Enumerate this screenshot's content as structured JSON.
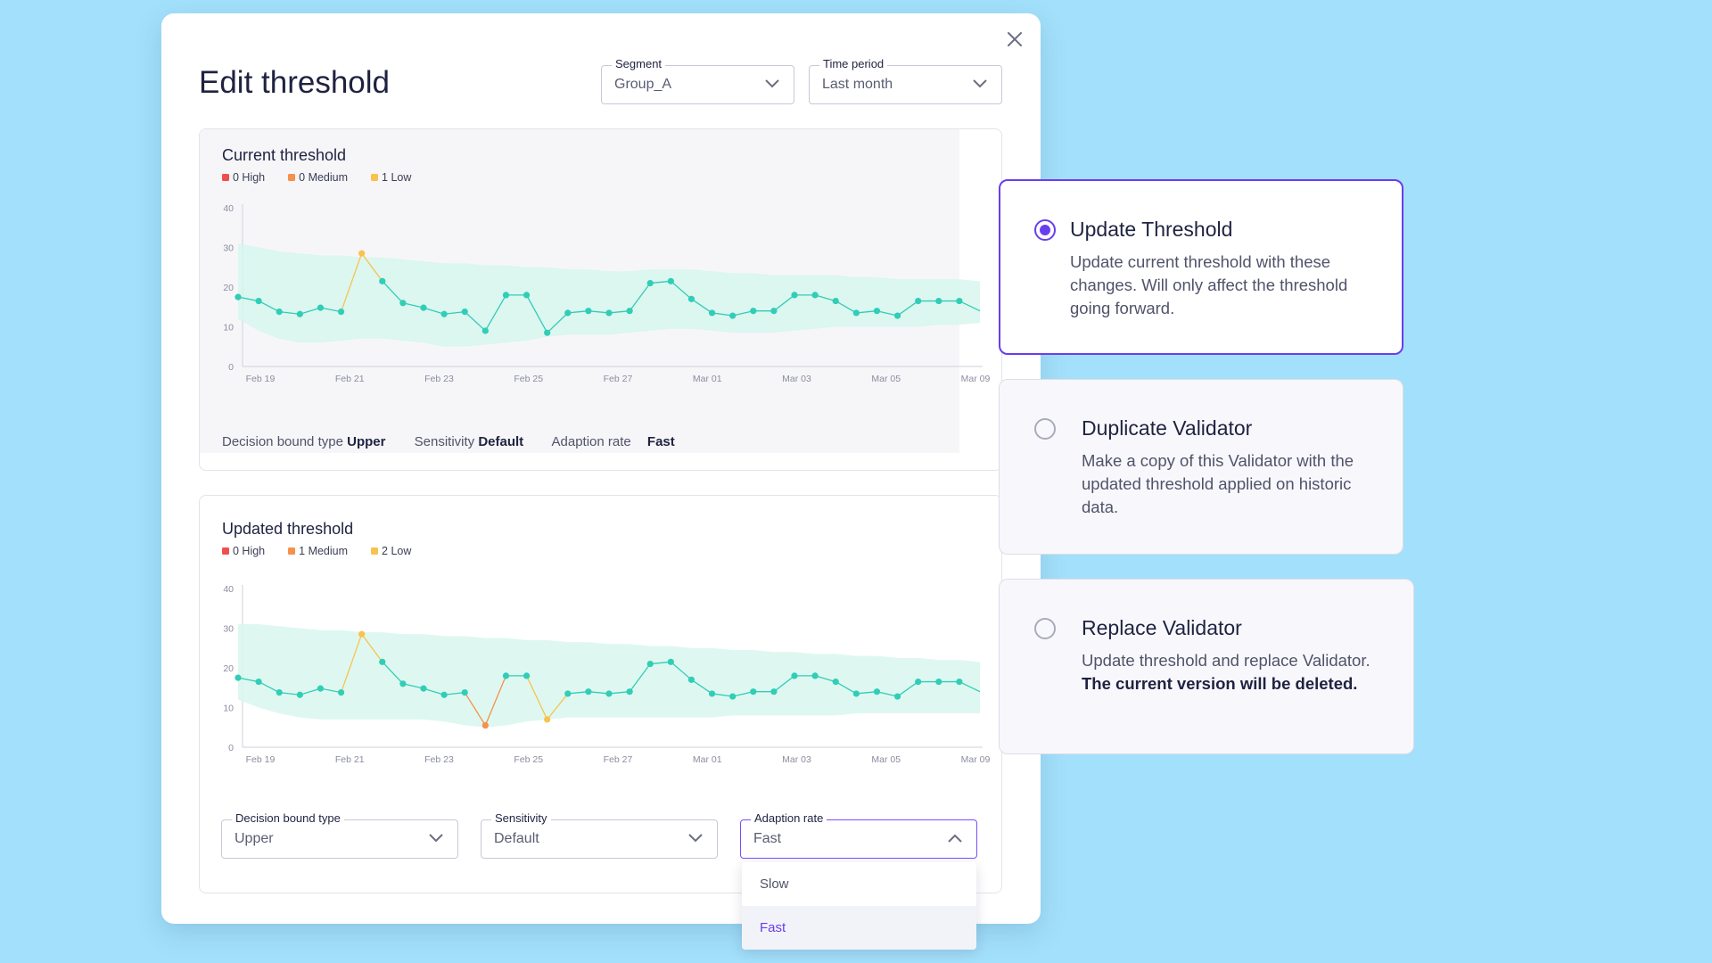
{
  "modal": {
    "title": "Edit threshold",
    "segment": {
      "label": "Segment",
      "value": "Group_A"
    },
    "time_period": {
      "label": "Time period",
      "value": "Last month"
    }
  },
  "current": {
    "title": "Current threshold",
    "legend": [
      {
        "label": "0 High",
        "color": "#ef4f4f"
      },
      {
        "label": "0 Medium",
        "color": "#f5914a"
      },
      {
        "label": "1 Low",
        "color": "#f7c34c"
      }
    ],
    "meta": {
      "bound_label": "Decision bound type",
      "bound_value": "Upper",
      "sensitivity_label": "Sensitivity",
      "sensitivity_value": "Default",
      "adaption_label": "Adaption rate",
      "adaption_value": "Fast"
    }
  },
  "updated": {
    "title": "Updated threshold",
    "legend": [
      {
        "label": "0 High",
        "color": "#ef4f4f"
      },
      {
        "label": "1 Medium",
        "color": "#f5914a"
      },
      {
        "label": "2 Low",
        "color": "#f7c34c"
      }
    ],
    "controls": {
      "bound": {
        "label": "Decision bound type",
        "value": "Upper"
      },
      "sensitivity": {
        "label": "Sensitivity",
        "value": "Default"
      },
      "adaption": {
        "label": "Adaption rate",
        "value": "Fast"
      }
    },
    "dropdown_options": [
      "Slow",
      "Fast"
    ]
  },
  "options": [
    {
      "title": "Update Threshold",
      "desc": "Update current threshold with these changes. Will only affect the threshold going forward.",
      "desc_bold": "",
      "selected": true
    },
    {
      "title": "Duplicate Validator",
      "desc": "Make a copy of this Validator with the updated threshold applied on historic data.",
      "desc_bold": "",
      "selected": false
    },
    {
      "title": "Replace Validator",
      "desc": "Update threshold and replace Validator. ",
      "desc_bold": "The current version will be deleted.",
      "selected": false
    }
  ],
  "chart_data": [
    {
      "type": "line",
      "title": "Current threshold",
      "xlabel": "",
      "ylabel": "",
      "ylim": [
        0,
        40
      ],
      "yticks": [
        0,
        10,
        20,
        30,
        40
      ],
      "xticks": [
        "Feb 19",
        "Feb 21",
        "Feb 23",
        "Feb 25",
        "Feb 27",
        "Mar 01",
        "Mar 03",
        "Mar 05",
        "Mar 09"
      ],
      "series": [
        {
          "values": [
            17.5,
            16.5,
            13.8,
            13.2,
            14.8,
            13.8,
            28.5,
            21.5,
            16.0,
            14.8,
            13.2,
            13.8,
            9.0,
            18.0,
            18.0,
            8.5,
            13.5,
            14.0,
            13.5,
            14.0,
            21.0,
            21.5,
            17.0,
            13.5,
            12.8,
            14.0,
            14.0,
            18.0,
            18.0,
            16.5,
            13.5,
            14.0,
            12.8,
            16.5,
            16.5,
            16.5,
            14.0
          ]
        }
      ],
      "anomalies": [
        {
          "index": 6,
          "level": "low"
        }
      ],
      "band_upper": [
        31,
        30,
        29,
        28.5,
        28,
        28,
        27.5,
        27.5,
        27,
        26.5,
        26,
        26,
        25.5,
        25.5,
        25,
        25,
        24.5,
        24.5,
        24,
        24,
        24.5,
        24.5,
        24.5,
        24,
        23.5,
        23.5,
        23,
        23,
        23,
        23,
        22.5,
        22.5,
        22,
        22,
        22,
        22,
        21.5
      ],
      "band_lower": [
        12,
        9,
        7,
        6,
        6,
        6.5,
        7,
        7,
        6.5,
        6,
        5,
        5,
        5.5,
        6,
        6.5,
        7.5,
        8,
        8,
        8,
        8.5,
        9,
        9.5,
        9.5,
        9,
        8.5,
        8.5,
        8.5,
        9,
        9.5,
        10,
        10,
        10,
        10,
        10,
        10.5,
        10.5,
        11
      ]
    },
    {
      "type": "line",
      "title": "Updated threshold",
      "xlabel": "",
      "ylabel": "",
      "ylim": [
        0,
        40
      ],
      "yticks": [
        0,
        10,
        20,
        30,
        40
      ],
      "xticks": [
        "Feb 19",
        "Feb 21",
        "Feb 23",
        "Feb 25",
        "Feb 27",
        "Mar 01",
        "Mar 03",
        "Mar 05",
        "Mar 09"
      ],
      "series": [
        {
          "values": [
            17.5,
            16.5,
            13.8,
            13.2,
            14.8,
            13.8,
            28.5,
            21.5,
            16.0,
            14.8,
            13.2,
            13.8,
            5.5,
            18.0,
            18.0,
            7.0,
            13.5,
            14.0,
            13.5,
            14.0,
            21.0,
            21.5,
            17.0,
            13.5,
            12.8,
            14.0,
            14.0,
            18.0,
            18.0,
            16.5,
            13.5,
            14.0,
            12.8,
            16.5,
            16.5,
            16.5,
            14.0
          ]
        }
      ],
      "anomalies": [
        {
          "index": 6,
          "level": "low"
        },
        {
          "index": 12,
          "level": "medium"
        },
        {
          "index": 15,
          "level": "low"
        }
      ],
      "band_upper": [
        31,
        31,
        30.5,
        30,
        29.5,
        29.5,
        29,
        29,
        28.5,
        28.5,
        28,
        28,
        27.5,
        27.5,
        27,
        27,
        26.5,
        26.5,
        26,
        26,
        25.5,
        25.5,
        25,
        25,
        24.5,
        24.5,
        24,
        24,
        23.5,
        23.5,
        23,
        23,
        22.5,
        22.5,
        22,
        22,
        21.5
      ],
      "band_lower": [
        12,
        10,
        8.5,
        7.5,
        7,
        7,
        7,
        7,
        7,
        7,
        6.5,
        5.5,
        5,
        5.5,
        6.5,
        7,
        7.5,
        7.5,
        7.5,
        7.5,
        7.5,
        7.5,
        7.5,
        7.5,
        8,
        8,
        8,
        8,
        8,
        8,
        8.5,
        8.5,
        8.5,
        8.5,
        8.5,
        8.5,
        8.5
      ]
    }
  ]
}
